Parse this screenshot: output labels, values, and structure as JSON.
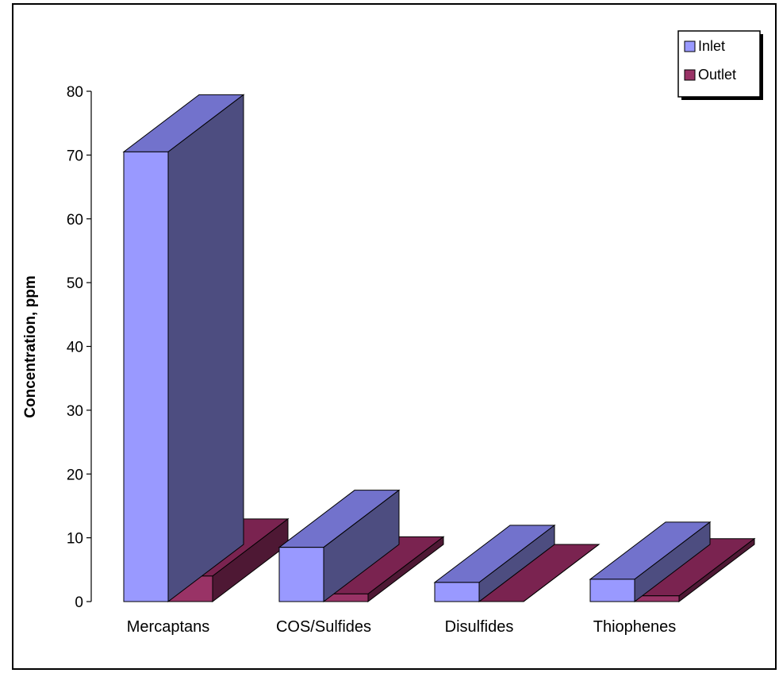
{
  "chart_data": {
    "type": "bar",
    "categories": [
      "Mercaptans",
      "COS/Sulfides",
      "Disulfides",
      "Thiophenes"
    ],
    "series": [
      {
        "name": "Inlet",
        "values": [
          70.5,
          8.5,
          3.0,
          3.5
        ],
        "color": "#9999ff",
        "top": "#7272cc",
        "side": "#4d4d80"
      },
      {
        "name": "Outlet",
        "values": [
          4.0,
          1.2,
          0.0,
          0.9
        ],
        "color": "#993366",
        "top": "#7a2350",
        "side": "#4e1834"
      }
    ],
    "ylabel": "Concentration, ppm",
    "xlabel": "",
    "ylim": [
      0,
      80
    ],
    "yticks": [
      0,
      10,
      20,
      30,
      40,
      50,
      60,
      70,
      80
    ],
    "grid": false,
    "legend": "top-right"
  }
}
